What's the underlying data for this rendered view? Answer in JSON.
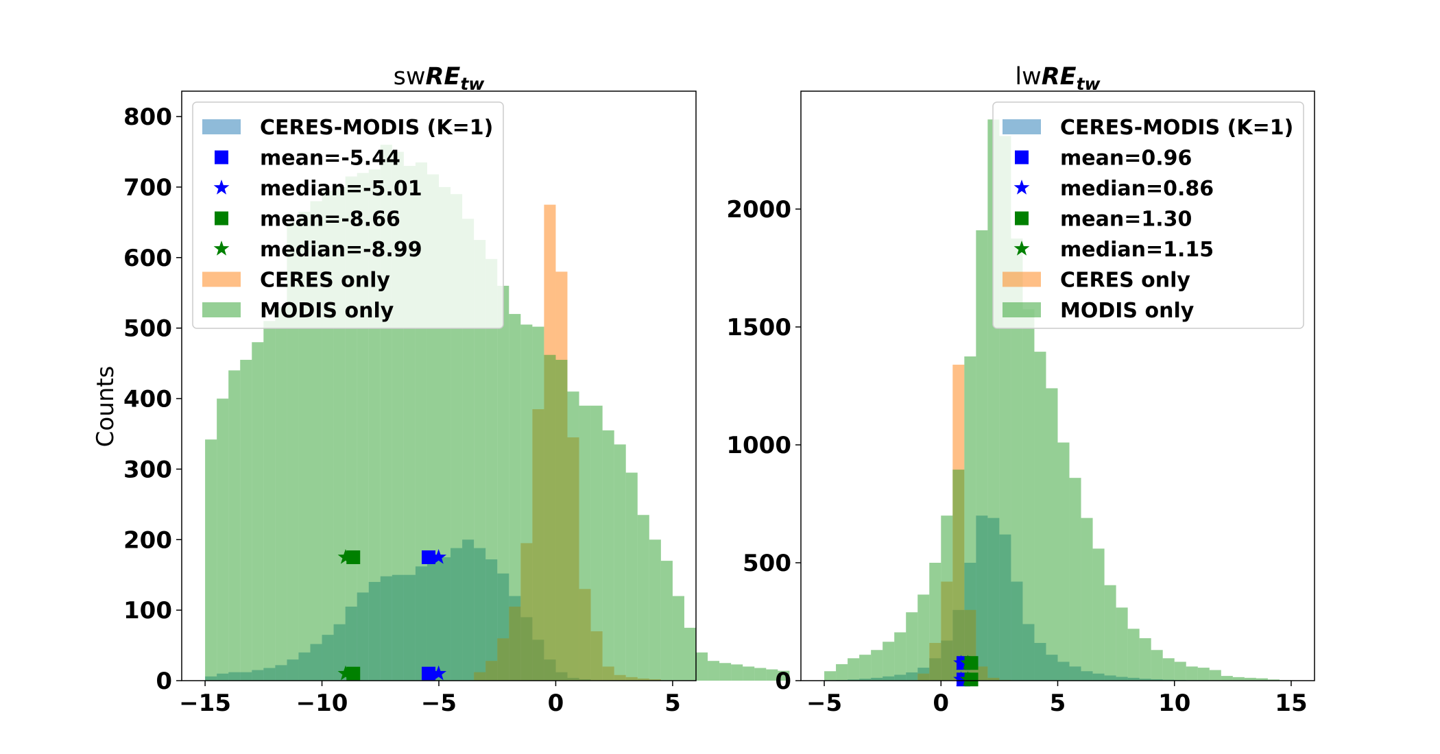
{
  "chart_data": [
    {
      "type": "histogram",
      "title_prefix": "sw",
      "title_main": "RE",
      "title_sub": "tw",
      "ylabel": "Counts",
      "xlim": [
        -16.0,
        6.0
      ],
      "ylim": [
        0,
        836
      ],
      "xticks": [
        -15,
        -10,
        -5,
        0,
        5
      ],
      "xtick_labels": [
        "−15",
        "−10",
        "−5",
        "0",
        "5"
      ],
      "yticks": [
        0,
        100,
        200,
        300,
        400,
        500,
        600,
        700,
        800
      ],
      "legend_position": "upper left",
      "colors": {
        "ceres_modis": "#1f77b4",
        "ceres_only": "#ff7f0e",
        "modis_only": "#2ca02c",
        "blue": "#0000ff",
        "green": "#008000"
      },
      "series": [
        {
          "name": "CERES-MODIS (K=1)",
          "color_key": "ceres_modis",
          "start": -15.0,
          "width": 0.5,
          "values": [
            6,
            10,
            12,
            12,
            15,
            18,
            22,
            30,
            40,
            52,
            65,
            80,
            105,
            125,
            140,
            148,
            150,
            150,
            162,
            170,
            175,
            188,
            200,
            188,
            172,
            152,
            120,
            90,
            58,
            30,
            12,
            4,
            2
          ]
        },
        {
          "name": "CERES only",
          "color_key": "ceres_only",
          "start": -3.5,
          "width": 0.5,
          "values": [
            12,
            28,
            60,
            105,
            195,
            385,
            675,
            580,
            345,
            130,
            70,
            20,
            8,
            5,
            3,
            2
          ]
        },
        {
          "name": "MODIS only",
          "color_key": "modis_only",
          "start": -15.0,
          "width": 0.5,
          "values": [
            342,
            400,
            440,
            455,
            480,
            510,
            530,
            650,
            665,
            680,
            695,
            700,
            715,
            720,
            725,
            760,
            750,
            730,
            735,
            718,
            700,
            690,
            655,
            625,
            598,
            560,
            520,
            505,
            502,
            462,
            455,
            410,
            390,
            390,
            355,
            335,
            295,
            235,
            200,
            170,
            120,
            75,
            40,
            28,
            25,
            23,
            20,
            18,
            16,
            14
          ]
        }
      ],
      "markers": [
        {
          "kind": "square",
          "color_key": "blue",
          "x": -5.44,
          "y": 175
        },
        {
          "kind": "star",
          "color_key": "blue",
          "x": -5.01,
          "y": 175
        },
        {
          "kind": "square",
          "color_key": "green",
          "x": -8.66,
          "y": 175
        },
        {
          "kind": "star",
          "color_key": "green",
          "x": -8.99,
          "y": 175
        },
        {
          "kind": "square",
          "color_key": "blue",
          "x": -5.44,
          "y": 10
        },
        {
          "kind": "star",
          "color_key": "blue",
          "x": -5.01,
          "y": 10
        },
        {
          "kind": "square",
          "color_key": "green",
          "x": -8.66,
          "y": 10
        },
        {
          "kind": "star",
          "color_key": "green",
          "x": -8.99,
          "y": 10
        }
      ],
      "legend": [
        {
          "kind": "patch",
          "color_key": "ceres_modis",
          "label": "CERES-MODIS (K=1)"
        },
        {
          "kind": "square",
          "color_key": "blue",
          "label": "mean=-5.44"
        },
        {
          "kind": "star",
          "color_key": "blue",
          "label": "median=-5.01"
        },
        {
          "kind": "square",
          "color_key": "green",
          "label": "mean=-8.66"
        },
        {
          "kind": "star",
          "color_key": "green",
          "label": "median=-8.99"
        },
        {
          "kind": "patch",
          "color_key": "ceres_only",
          "label": "CERES only"
        },
        {
          "kind": "patch",
          "color_key": "modis_only",
          "label": "MODIS only"
        }
      ]
    },
    {
      "type": "histogram",
      "title_prefix": "lw",
      "title_main": "RE",
      "title_sub": "tw",
      "ylabel": "",
      "xlim": [
        -6.0,
        16.0
      ],
      "ylim": [
        0,
        2500
      ],
      "xticks": [
        -5,
        0,
        5,
        10,
        15
      ],
      "xtick_labels": [
        "−5",
        "0",
        "5",
        "10",
        "15"
      ],
      "yticks": [
        0,
        500,
        1000,
        1500,
        2000
      ],
      "legend_position": "upper right",
      "colors": {
        "ceres_modis": "#1f77b4",
        "ceres_only": "#ff7f0e",
        "modis_only": "#2ca02c",
        "blue": "#0000ff",
        "green": "#008000"
      },
      "series": [
        {
          "name": "CERES-MODIS (K=1)",
          "color_key": "ceres_modis",
          "start": -5.0,
          "width": 0.5,
          "values": [
            2,
            3,
            5,
            8,
            12,
            18,
            25,
            35,
            55,
            95,
            170,
            300,
            500,
            700,
            690,
            620,
            420,
            240,
            160,
            110,
            80,
            60,
            40,
            30,
            22,
            16,
            12,
            8,
            6,
            4,
            3,
            2,
            2,
            1,
            1,
            1,
            1,
            0,
            0,
            0
          ]
        },
        {
          "name": "CERES only",
          "color_key": "ceres_only",
          "start": -1.0,
          "width": 0.5,
          "values": [
            30,
            160,
            420,
            1340,
            300,
            60,
            12,
            3
          ]
        },
        {
          "name": "MODIS only",
          "color_key": "modis_only",
          "start": -5.0,
          "width": 0.5,
          "values": [
            40,
            70,
            95,
            110,
            130,
            165,
            205,
            290,
            365,
            500,
            700,
            895,
            1375,
            1910,
            2380,
            2310,
            1875,
            1575,
            1395,
            1240,
            1010,
            860,
            690,
            560,
            405,
            310,
            220,
            180,
            130,
            95,
            80,
            60,
            55,
            45,
            20,
            15,
            12,
            10,
            5,
            2
          ]
        }
      ],
      "markers": [
        {
          "kind": "square",
          "color_key": "blue",
          "x": 0.96,
          "y": 75
        },
        {
          "kind": "star",
          "color_key": "blue",
          "x": 0.86,
          "y": 75
        },
        {
          "kind": "square",
          "color_key": "green",
          "x": 1.3,
          "y": 75
        },
        {
          "kind": "star",
          "color_key": "green",
          "x": 1.15,
          "y": 75
        },
        {
          "kind": "square",
          "color_key": "blue",
          "x": 0.96,
          "y": 5
        },
        {
          "kind": "star",
          "color_key": "blue",
          "x": 0.86,
          "y": 5
        },
        {
          "kind": "square",
          "color_key": "green",
          "x": 1.3,
          "y": 5
        },
        {
          "kind": "star",
          "color_key": "green",
          "x": 1.15,
          "y": 5
        }
      ],
      "legend": [
        {
          "kind": "patch",
          "color_key": "ceres_modis",
          "label": "CERES-MODIS (K=1)"
        },
        {
          "kind": "square",
          "color_key": "blue",
          "label": "mean=0.96"
        },
        {
          "kind": "star",
          "color_key": "blue",
          "label": "median=0.86"
        },
        {
          "kind": "square",
          "color_key": "green",
          "label": "mean=1.30"
        },
        {
          "kind": "star",
          "color_key": "green",
          "label": "median=1.15"
        },
        {
          "kind": "patch",
          "color_key": "ceres_only",
          "label": "CERES only"
        },
        {
          "kind": "patch",
          "color_key": "modis_only",
          "label": "MODIS only"
        }
      ]
    }
  ]
}
